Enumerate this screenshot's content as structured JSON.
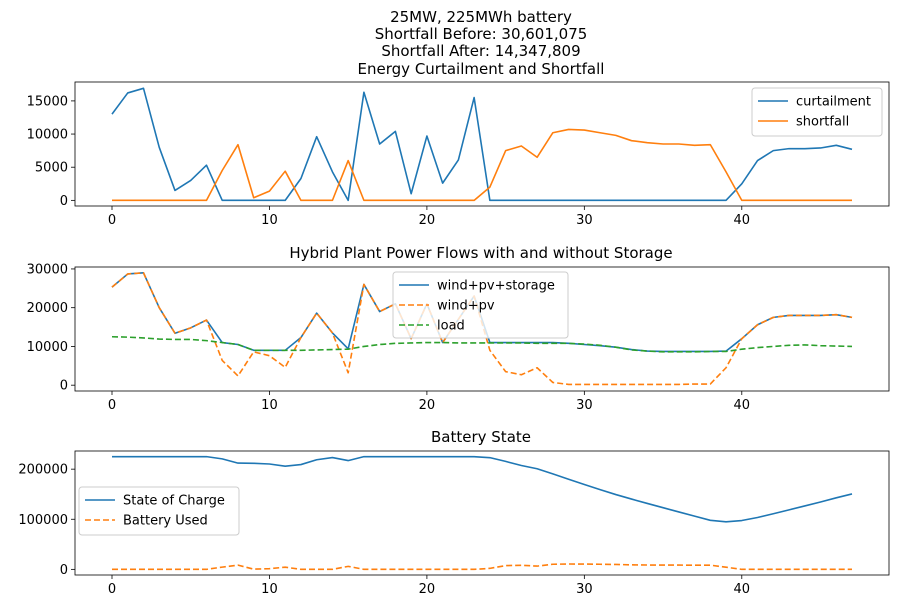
{
  "header": {
    "line1": "25MW, 225MWh battery",
    "line2": "Shortfall Before: 30,601,075",
    "line3": "Shortfall After: 14,347,809"
  },
  "chart_data": [
    {
      "type": "line",
      "title": "Energy Curtailment and Shortfall",
      "xlabel": "",
      "ylabel": "",
      "xlim": [
        -2.35,
        49.35
      ],
      "ylim": [
        -850,
        17850
      ],
      "xticks": [
        0,
        10,
        20,
        30,
        40
      ],
      "yticks": [
        0,
        5000,
        10000,
        15000
      ],
      "grid": false,
      "legend": "upper right",
      "x": [
        0,
        1,
        2,
        3,
        4,
        5,
        6,
        7,
        8,
        9,
        10,
        11,
        12,
        13,
        14,
        15,
        16,
        17,
        18,
        19,
        20,
        21,
        22,
        23,
        24,
        25,
        26,
        27,
        28,
        29,
        30,
        31,
        32,
        33,
        34,
        35,
        36,
        37,
        38,
        39,
        40,
        41,
        42,
        43,
        44,
        45,
        46,
        47
      ],
      "series": [
        {
          "name": "curtailment",
          "color": "#1f77b4",
          "dash": "solid",
          "values": [
            13000,
            16200,
            16900,
            8000,
            1500,
            3000,
            5300,
            0,
            0,
            0,
            0,
            0,
            3300,
            9600,
            4300,
            0,
            16300,
            8500,
            10400,
            1000,
            9700,
            2600,
            6100,
            15500,
            0,
            0,
            0,
            0,
            0,
            0,
            0,
            0,
            0,
            0,
            0,
            0,
            0,
            0,
            0,
            0,
            2500,
            6000,
            7500,
            7800,
            7800,
            7900,
            8300,
            7700
          ]
        },
        {
          "name": "shortfall",
          "color": "#ff7f0e",
          "dash": "solid",
          "values": [
            0,
            0,
            0,
            0,
            0,
            0,
            0,
            4500,
            8400,
            400,
            1400,
            4400,
            0,
            0,
            0,
            6000,
            0,
            0,
            0,
            0,
            0,
            0,
            0,
            0,
            2000,
            7500,
            8200,
            6500,
            10200,
            10700,
            10600,
            10200,
            9800,
            9000,
            8700,
            8500,
            8500,
            8300,
            8400,
            4300,
            0,
            0,
            0,
            0,
            0,
            0,
            0,
            0
          ]
        }
      ]
    },
    {
      "type": "line",
      "title": "Hybrid Plant Power Flows with and without Storage",
      "xlabel": "",
      "ylabel": "",
      "xlim": [
        -2.35,
        49.35
      ],
      "ylim": [
        -1500,
        30500
      ],
      "xticks": [
        0,
        10,
        20,
        30,
        40
      ],
      "yticks": [
        0,
        10000,
        20000,
        30000
      ],
      "grid": false,
      "legend": "upper center",
      "x": [
        0,
        1,
        2,
        3,
        4,
        5,
        6,
        7,
        8,
        9,
        10,
        11,
        12,
        13,
        14,
        15,
        16,
        17,
        18,
        19,
        20,
        21,
        22,
        23,
        24,
        25,
        26,
        27,
        28,
        29,
        30,
        31,
        32,
        33,
        34,
        35,
        36,
        37,
        38,
        39,
        40,
        41,
        42,
        43,
        44,
        45,
        46,
        47
      ],
      "series": [
        {
          "name": "wind+pv+storage",
          "color": "#1f77b4",
          "dash": "solid",
          "values": [
            25300,
            28700,
            29000,
            20000,
            13400,
            14800,
            16800,
            11000,
            10500,
            9000,
            9000,
            9000,
            12300,
            18600,
            13500,
            9400,
            26000,
            19000,
            21000,
            12000,
            21000,
            11000,
            17000,
            23000,
            11000,
            11000,
            11000,
            11000,
            11000,
            10800,
            10500,
            10200,
            9800,
            9200,
            8800,
            8700,
            8700,
            8700,
            8700,
            8800,
            12000,
            15600,
            17500,
            18000,
            18000,
            18000,
            18200,
            17500
          ]
        },
        {
          "name": "wind+pv",
          "color": "#ff7f0e",
          "dash": "dashed",
          "values": [
            25300,
            28700,
            29000,
            20000,
            13400,
            14800,
            16800,
            6400,
            2400,
            8600,
            7600,
            4600,
            12300,
            18600,
            13500,
            3200,
            26000,
            19000,
            21000,
            12000,
            21000,
            11000,
            17000,
            23000,
            9000,
            3500,
            2700,
            4500,
            700,
            200,
            200,
            200,
            200,
            200,
            200,
            200,
            200,
            300,
            300,
            4500,
            12000,
            15600,
            17500,
            18000,
            18000,
            18000,
            18200,
            17500
          ]
        },
        {
          "name": "load",
          "color": "#2ca02c",
          "dash": "dashed",
          "values": [
            12500,
            12400,
            12200,
            11900,
            11800,
            11800,
            11500,
            11000,
            10500,
            9000,
            9000,
            9000,
            9000,
            9100,
            9200,
            9300,
            10000,
            10500,
            10800,
            10900,
            11000,
            11000,
            10900,
            10900,
            10900,
            10900,
            10900,
            10800,
            10800,
            10800,
            10600,
            10300,
            9800,
            9100,
            8800,
            8600,
            8600,
            8600,
            8700,
            8700,
            9300,
            9700,
            10000,
            10300,
            10400,
            10200,
            10100,
            10000
          ]
        }
      ]
    },
    {
      "type": "line",
      "title": "Battery State",
      "xlabel": "",
      "ylabel": "",
      "xlim": [
        -2.35,
        49.35
      ],
      "ylim": [
        -11250,
        236250
      ],
      "xticks": [
        0,
        10,
        20,
        30,
        40
      ],
      "yticks": [
        0,
        100000,
        200000
      ],
      "grid": false,
      "legend": "center left",
      "x": [
        0,
        1,
        2,
        3,
        4,
        5,
        6,
        7,
        8,
        9,
        10,
        11,
        12,
        13,
        14,
        15,
        16,
        17,
        18,
        19,
        20,
        21,
        22,
        23,
        24,
        25,
        26,
        27,
        28,
        29,
        30,
        31,
        32,
        33,
        34,
        35,
        36,
        37,
        38,
        39,
        40,
        41,
        42,
        43,
        44,
        45,
        46,
        47
      ],
      "series": [
        {
          "name": "State of Charge",
          "color": "#1f77b4",
          "dash": "solid",
          "values": [
            225000,
            225000,
            225000,
            225000,
            225000,
            225000,
            225000,
            220500,
            212100,
            211700,
            210300,
            205900,
            209200,
            218800,
            223100,
            217100,
            225000,
            225000,
            225000,
            225000,
            225000,
            225000,
            225000,
            225000,
            223000,
            215500,
            207300,
            200800,
            190600,
            179900,
            169300,
            159100,
            149300,
            140300,
            131600,
            123100,
            114600,
            106300,
            97900,
            95000,
            97500,
            103500,
            111000,
            118800,
            126600,
            134500,
            142800,
            150500
          ]
        },
        {
          "name": "Battery Used",
          "color": "#ff7f0e",
          "dash": "dashed",
          "values": [
            0,
            0,
            0,
            0,
            0,
            0,
            0,
            4500,
            8400,
            400,
            1400,
            4400,
            0,
            0,
            0,
            6000,
            0,
            0,
            0,
            0,
            0,
            0,
            0,
            0,
            2000,
            7500,
            8200,
            6500,
            10200,
            10700,
            10600,
            10200,
            9800,
            9000,
            8700,
            8500,
            8500,
            8300,
            8400,
            4300,
            0,
            0,
            0,
            0,
            0,
            0,
            0,
            0
          ]
        }
      ]
    }
  ]
}
